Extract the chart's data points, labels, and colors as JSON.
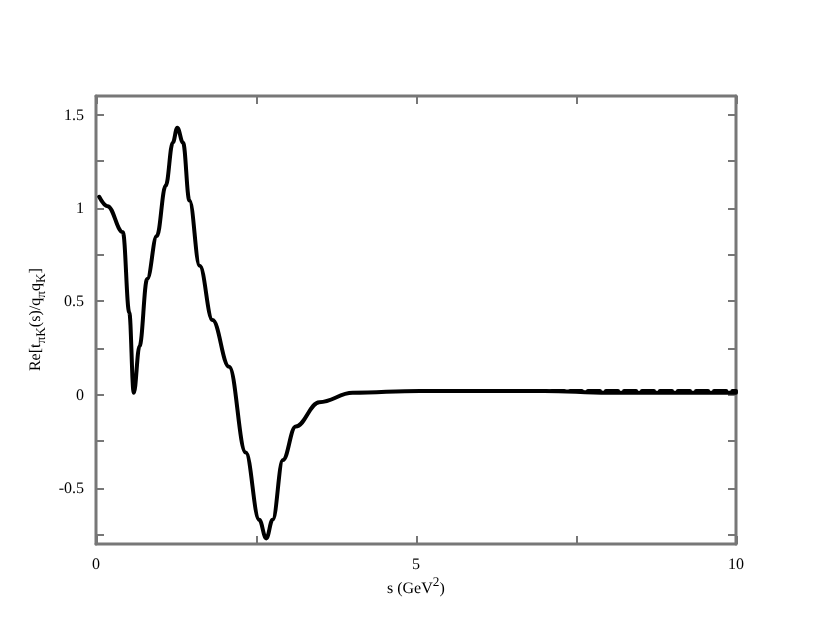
{
  "chart_data": {
    "type": "line",
    "xlabel": "s (GeV$^{2}$)",
    "ylabel": "Re[t$_{πK}$(s)/q$_{π}$q$_{K}$]",
    "xlim": [
      0,
      10
    ],
    "xticks": [
      0,
      {
        "value": 2.5,
        "label": null
      },
      5,
      {
        "value": 7.5,
        "label": null
      },
      10
    ],
    "ylim": [
      -0.8,
      1.6
    ],
    "yticks": [
      {
        "value": -0.75,
        "label": null
      },
      -0.5,
      {
        "value": -0.25,
        "label": null
      },
      0,
      {
        "value": 0.25,
        "label": null
      },
      0.5,
      {
        "value": 0.75,
        "label": null
      },
      1,
      {
        "value": 1.25,
        "label": null
      },
      1.5
    ],
    "grid": false,
    "marker": "none",
    "series": [
      {
        "color": "#000000",
        "line_style": "solid",
        "x": [
          0.05,
          0.18,
          0.42,
          0.52,
          0.59,
          0.68,
          0.8,
          0.95,
          1.09,
          1.2,
          1.27,
          1.36,
          1.46,
          1.62,
          1.82,
          2.08,
          2.34,
          2.55,
          2.66,
          2.76,
          2.92,
          3.12,
          3.49,
          4.01,
          5.06,
          6,
          7,
          8,
          9,
          10
        ],
        "values": [
          1.06,
          1.01,
          0.87,
          0.44,
          0.01,
          0.26,
          0.62,
          0.85,
          1.12,
          1.35,
          1.43,
          1.35,
          1.04,
          0.69,
          0.4,
          0.15,
          -0.31,
          -0.67,
          -0.77,
          -0.67,
          -0.35,
          -0.17,
          -0.04,
          0.01,
          0.02,
          0.02,
          0.02,
          0.01,
          0.01,
          0.01
        ]
      },
      {
        "color": "#000000",
        "line_style": "dashed",
        "x": [
          6,
          7,
          8,
          9,
          10
        ],
        "values": [
          0.02,
          0.02,
          0.02,
          0.02,
          0.02
        ]
      }
    ]
  }
}
